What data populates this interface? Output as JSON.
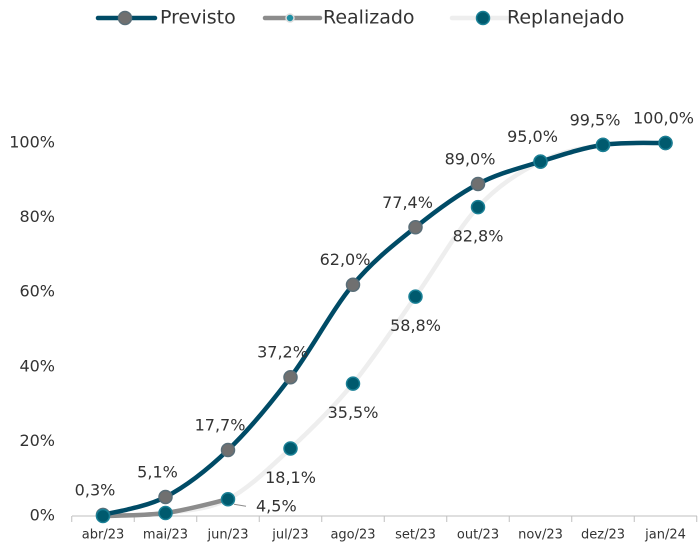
{
  "chart_data": {
    "type": "line",
    "categories": [
      "abr/23",
      "mai/23",
      "jun/23",
      "jul/23",
      "ago/23",
      "set/23",
      "out/23",
      "nov/23",
      "dez/23",
      "jan/24"
    ],
    "series": [
      {
        "name": "Previsto",
        "color": "#004b66",
        "marker_color": "#707070",
        "values": [
          0.3,
          5.1,
          17.7,
          37.2,
          62.0,
          77.4,
          89.0,
          95.0,
          99.5,
          100.0
        ],
        "value_labels": [
          "0,3%",
          "5,1%",
          "17,7%",
          "37,2%",
          "62,0%",
          "77,4%",
          "89,0%",
          "95,0%",
          "99,5%",
          "100,0%"
        ]
      },
      {
        "name": "Realizado",
        "color": "#8c8c8c",
        "marker_color": "#1f8fa3",
        "values": [
          0,
          0.8,
          4.5,
          null,
          null,
          null,
          null,
          null,
          null,
          null
        ],
        "value_labels": [
          null,
          null,
          "4,5%",
          null,
          null,
          null,
          null,
          null,
          null,
          null
        ]
      },
      {
        "name": "Replanejado",
        "color": "#eeeeee",
        "marker_color": "#005a6e",
        "values": [
          0,
          0.8,
          4.5,
          18.1,
          35.5,
          58.8,
          82.8,
          95.0,
          99.5,
          100.0
        ],
        "value_labels": [
          null,
          null,
          null,
          "18,1%",
          "35,5%",
          "58,8%",
          "82,8%",
          null,
          null,
          null
        ]
      }
    ],
    "ylim": [
      0,
      100
    ],
    "yticks": [
      {
        "value": 0,
        "label": "0%"
      },
      {
        "value": 20,
        "label": "20%"
      },
      {
        "value": 40,
        "label": "40%"
      },
      {
        "value": 60,
        "label": "60%"
      },
      {
        "value": 80,
        "label": "80%"
      },
      {
        "value": 100,
        "label": "100%"
      }
    ],
    "legend": "top",
    "grid": false
  }
}
